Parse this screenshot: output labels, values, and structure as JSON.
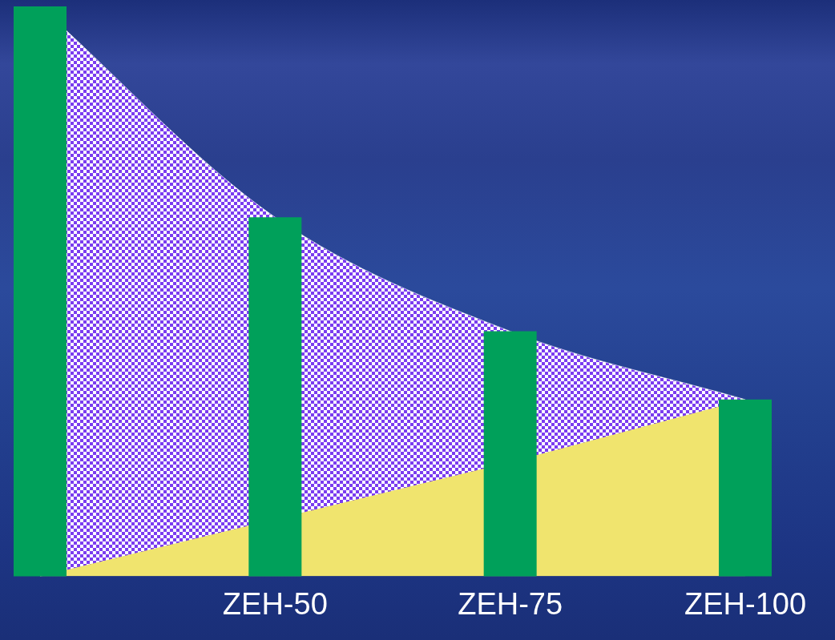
{
  "chart_data": {
    "type": "bar",
    "categories": [
      null,
      "ZEH-50",
      "ZEH-75",
      "ZEH-100"
    ],
    "series": [
      {
        "type": "bar",
        "color": "#00a05a",
        "values": [
          100,
          63,
          43,
          31
        ]
      },
      {
        "type": "line",
        "color": "#7b3cf0",
        "marker": "none",
        "line_style": "smooth",
        "values": [
          100,
          63,
          43,
          31
        ]
      },
      {
        "type": "line",
        "color": "#f0e46e",
        "marker": "none",
        "line_style": "solid",
        "values": [
          0,
          10,
          20,
          31
        ]
      }
    ],
    "ylim": [
      0,
      100
    ],
    "grid": false,
    "tick_labels": "x"
  }
}
